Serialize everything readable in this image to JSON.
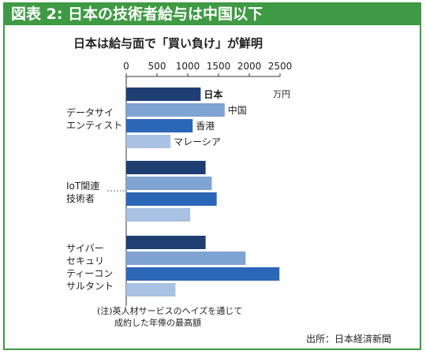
{
  "banner_title": "図表 2: 日本の技術者給与は中国以下",
  "colors": {
    "frame": "#3f9a44",
    "series": [
      "#1f3f73",
      "#7fa3d3",
      "#2b67b6",
      "#a9c1e2"
    ]
  },
  "chart_data": {
    "type": "bar",
    "orientation": "horizontal",
    "title": "日本は給与面で「買い負け」が鮮明",
    "unit": "万円",
    "xlim": [
      0,
      2500
    ],
    "ticks": [
      0,
      500,
      1000,
      1500,
      2000,
      2500
    ],
    "tick_labels": [
      "0",
      "500",
      "1000",
      "1500",
      "2000",
      "2500"
    ],
    "grid": false,
    "series_names": [
      "日本",
      "中国",
      "香港",
      "マレーシア"
    ],
    "groups": [
      {
        "label_lines": [
          "データサイ",
          "エンティスト"
        ],
        "values": [
          1210,
          1600,
          1080,
          720
        ]
      },
      {
        "label_lines": [
          "IoT関連",
          "技術者"
        ],
        "values": [
          1290,
          1390,
          1470,
          1040
        ]
      },
      {
        "label_lines": [
          "サイバー",
          "セキュリ",
          "ティーコン",
          "サルタント"
        ],
        "values": [
          1290,
          1940,
          2490,
          800
        ]
      }
    ],
    "footnote_lines": [
      "(注)英人材サービスのヘイズを通じて",
      "成約した年俸の最高額"
    ],
    "source": "出所：日本経済新聞"
  }
}
